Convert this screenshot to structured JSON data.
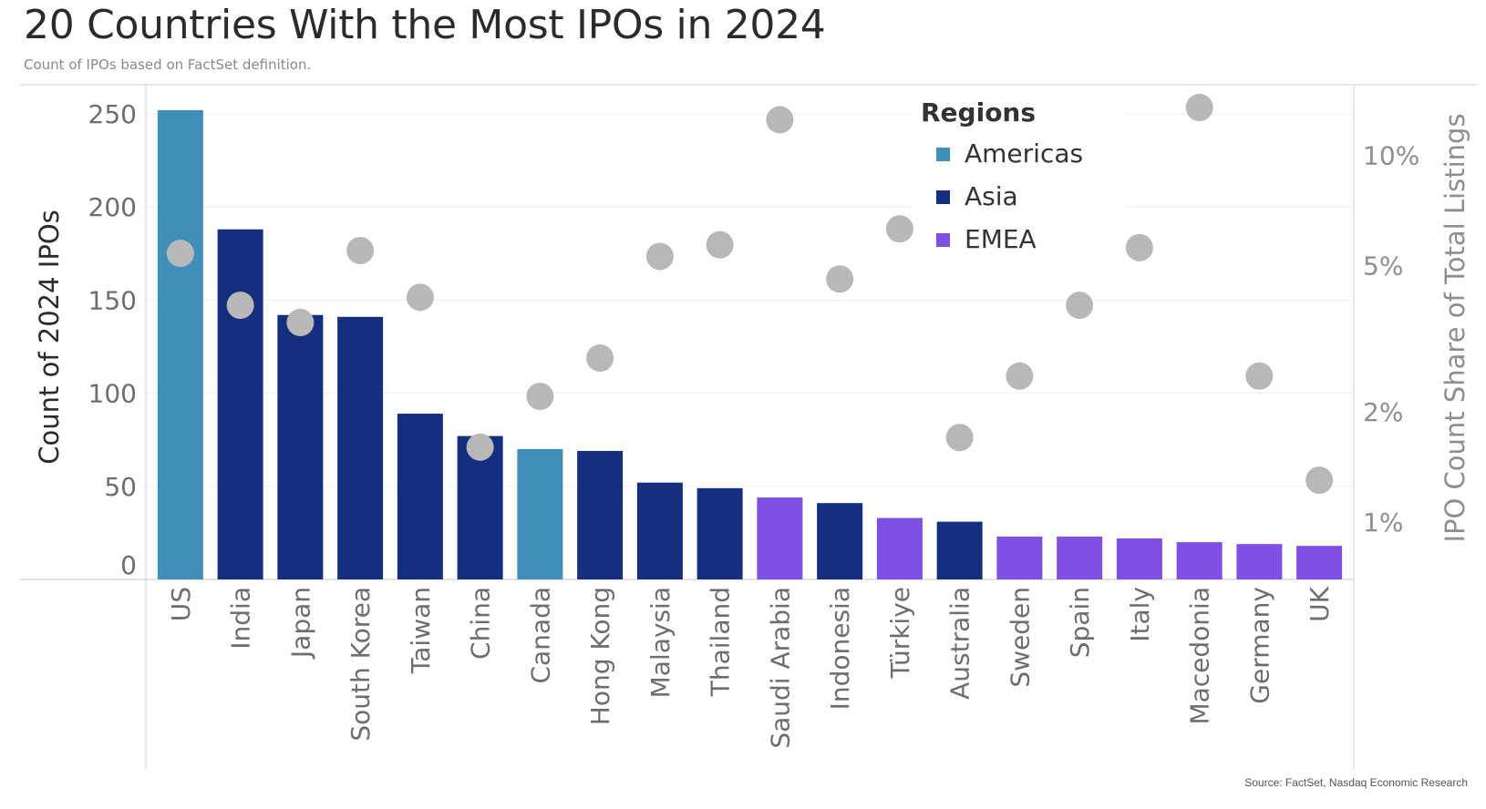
{
  "header": {
    "title": "20 Countries With the Most IPOs in 2024",
    "subtitle": "Count of IPOs based on FactSet definition."
  },
  "footer": {
    "source": "Source: FactSet, Nasdaq Economic Research"
  },
  "colors": {
    "Americas": "#3f8fba",
    "Asia": "#162e80",
    "EMEA": "#7e4fe2",
    "dot": "#b8b8b8"
  },
  "chart_data": {
    "type": "bar",
    "title": "20 Countries With the Most IPOs in 2024",
    "subtitle": "Count of IPOs based on FactSet definition.",
    "ylabel": "Count of 2024 IPOs",
    "ylabel_right": "IPO Count Share of Total Listings",
    "ylim": [
      0,
      250
    ],
    "yticks": [
      0,
      50,
      100,
      150,
      200,
      250
    ],
    "y2_scale": "log",
    "y2ticks": [
      1,
      2,
      5,
      10
    ],
    "y2tick_labels": [
      "1%",
      "2%",
      "5%",
      "10%"
    ],
    "legend": {
      "title": "Regions",
      "position": "top-right",
      "entries": [
        "Americas",
        "Asia",
        "EMEA"
      ]
    },
    "grid": true,
    "categories": [
      "US",
      "India",
      "Japan",
      "South Korea",
      "Taiwan",
      "China",
      "Canada",
      "Hong Kong",
      "Malaysia",
      "Thailand",
      "Saudi Arabia",
      "Indonesia",
      "Türkiye",
      "Australia",
      "Sweden",
      "Spain",
      "Italy",
      "Macedonia",
      "Germany",
      "UK"
    ],
    "regions": [
      "Americas",
      "Asia",
      "Asia",
      "Asia",
      "Asia",
      "Asia",
      "Americas",
      "Asia",
      "Asia",
      "Asia",
      "EMEA",
      "Asia",
      "EMEA",
      "Asia",
      "EMEA",
      "EMEA",
      "EMEA",
      "EMEA",
      "EMEA",
      "EMEA"
    ],
    "series": [
      {
        "name": "Count of 2024 IPOs",
        "values": [
          252,
          188,
          142,
          141,
          89,
          77,
          70,
          69,
          52,
          49,
          44,
          41,
          33,
          31,
          23,
          23,
          22,
          20,
          19,
          18
        ]
      },
      {
        "name": "IPO Count Share of Total Listings",
        "values": [
          5.4,
          3.9,
          3.5,
          5.5,
          4.1,
          1.6,
          2.2,
          2.8,
          5.3,
          5.7,
          12.5,
          4.6,
          6.3,
          1.7,
          2.5,
          3.9,
          5.6,
          13.5,
          2.5,
          1.3
        ]
      }
    ]
  }
}
